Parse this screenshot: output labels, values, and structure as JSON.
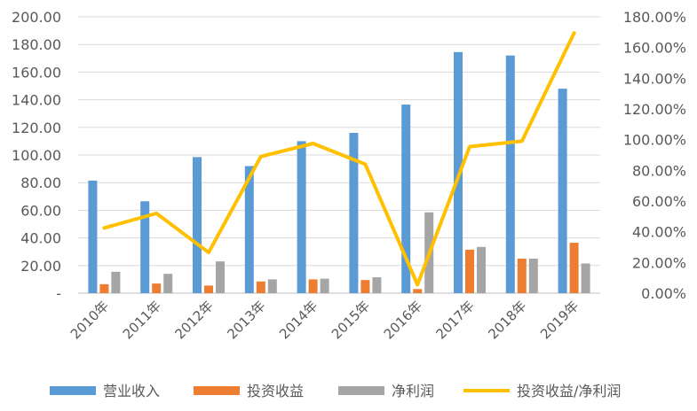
{
  "chart_data": {
    "type": "bar",
    "categories": [
      "2010年",
      "2011年",
      "2012年",
      "2013年",
      "2014年",
      "2015年",
      "2016年",
      "2017年",
      "2018年",
      "2019年"
    ],
    "series": [
      {
        "name": "营业收入",
        "type": "bar",
        "axis": "left",
        "color": "#5B9BD5",
        "values": [
          81.5,
          66.5,
          98.5,
          92.0,
          110.0,
          116.0,
          136.5,
          174.5,
          172.0,
          148.0
        ]
      },
      {
        "name": "投资收益",
        "type": "bar",
        "axis": "left",
        "color": "#ED7D31",
        "values": [
          6.5,
          7.0,
          5.5,
          8.5,
          10.0,
          9.5,
          3.0,
          31.5,
          25.0,
          36.5
        ]
      },
      {
        "name": "净利润",
        "type": "bar",
        "axis": "left",
        "color": "#A5A5A5",
        "values": [
          15.5,
          14.0,
          23.0,
          10.0,
          10.5,
          11.5,
          58.5,
          33.5,
          25.0,
          21.5
        ]
      },
      {
        "name": "投资收益/净利润",
        "type": "line",
        "axis": "right",
        "color": "#FFC000",
        "values": [
          42.5,
          52.0,
          26.5,
          89.0,
          97.5,
          84.0,
          5.5,
          95.5,
          99.0,
          169.5
        ]
      }
    ],
    "left_axis": {
      "ylim": [
        0,
        200
      ],
      "tick_labels": [
        "-",
        "20.00",
        "40.00",
        "60.00",
        "80.00",
        "100.00",
        "120.00",
        "140.00",
        "160.00",
        "180.00",
        "200.00"
      ]
    },
    "right_axis": {
      "ylim": [
        0,
        180
      ],
      "tick_labels": [
        "0.00%",
        "20.00%",
        "40.00%",
        "60.00%",
        "80.00%",
        "100.00%",
        "120.00%",
        "140.00%",
        "160.00%",
        "180.00%"
      ]
    },
    "title": "",
    "grid": true,
    "legend_position": "bottom"
  }
}
